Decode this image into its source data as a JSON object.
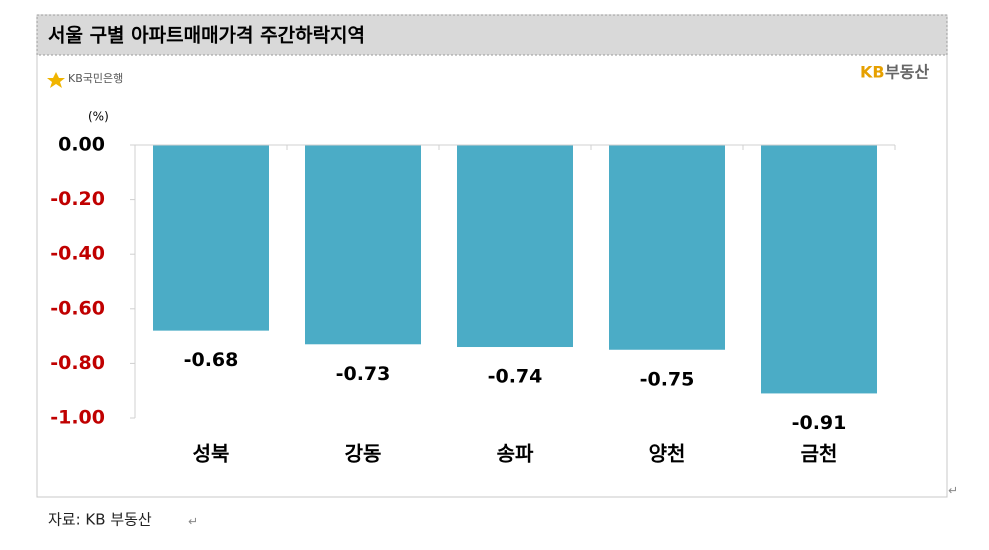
{
  "chart_data": {
    "type": "bar",
    "title": "서울 구별 아파트매매가격 주간하락지역",
    "logo_left": "KB국민은행",
    "logo_right_mark": "KB",
    "logo_right_name": "부동산",
    "unit_label": "(%)",
    "categories": [
      "성북",
      "강동",
      "송파",
      "양천",
      "금천"
    ],
    "values": [
      -0.68,
      -0.73,
      -0.74,
      -0.75,
      -0.91
    ],
    "color": "#4bacc6",
    "ylim": [
      -1,
      0
    ],
    "yticks": [
      {
        "value": 0,
        "label": "0.00"
      },
      {
        "value": -0.2,
        "label": "-0.20"
      },
      {
        "value": -0.4,
        "label": "-0.40"
      },
      {
        "value": -0.6,
        "label": "-0.60"
      },
      {
        "value": -0.8,
        "label": "-0.80"
      },
      {
        "value": -1,
        "label": "-1.00"
      }
    ],
    "ytick_colors": [
      "#000000",
      "#c00000",
      "#c00000",
      "#c00000",
      "#c00000",
      "#c00000"
    ],
    "source": "자료: KB 부동산"
  }
}
